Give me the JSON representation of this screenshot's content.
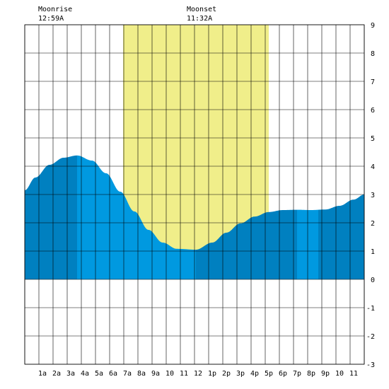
{
  "chart_data": {
    "type": "area",
    "title": "",
    "xlabel": "",
    "ylabel": "",
    "xlim": [
      -0.25,
      23.75
    ],
    "ylim": [
      -3,
      9
    ],
    "grid": true,
    "x_ticks": [
      {
        "x": 1,
        "label": "1a"
      },
      {
        "x": 2,
        "label": "2a"
      },
      {
        "x": 3,
        "label": "3a"
      },
      {
        "x": 4,
        "label": "4a"
      },
      {
        "x": 5,
        "label": "5a"
      },
      {
        "x": 6,
        "label": "6a"
      },
      {
        "x": 7,
        "label": "7a"
      },
      {
        "x": 8,
        "label": "8a"
      },
      {
        "x": 9,
        "label": "9a"
      },
      {
        "x": 10,
        "label": "10"
      },
      {
        "x": 11,
        "label": "11"
      },
      {
        "x": 12,
        "label": "12"
      },
      {
        "x": 13,
        "label": "1p"
      },
      {
        "x": 14,
        "label": "2p"
      },
      {
        "x": 15,
        "label": "3p"
      },
      {
        "x": 16,
        "label": "4p"
      },
      {
        "x": 17,
        "label": "5p"
      },
      {
        "x": 18,
        "label": "6p"
      },
      {
        "x": 19,
        "label": "7p"
      },
      {
        "x": 20,
        "label": "8p"
      },
      {
        "x": 21,
        "label": "9p"
      },
      {
        "x": 22,
        "label": "10"
      },
      {
        "x": 23,
        "label": "11"
      }
    ],
    "y_ticks": [
      -3,
      -2,
      -1,
      0,
      1,
      2,
      3,
      4,
      5,
      6,
      7,
      8,
      9
    ],
    "daylight": {
      "start": 6.7,
      "end": 17
    },
    "tide_curve": {
      "low_tide_times": [
        11.85
      ],
      "series": [
        {
          "x": -0.25,
          "y": 3.15
        },
        {
          "x": 0.5,
          "y": 3.6
        },
        {
          "x": 1.5,
          "y": 4.05
        },
        {
          "x": 2.5,
          "y": 4.3
        },
        {
          "x": 3.45,
          "y": 4.38
        },
        {
          "x": 4.5,
          "y": 4.2
        },
        {
          "x": 5.5,
          "y": 3.75
        },
        {
          "x": 6.5,
          "y": 3.1
        },
        {
          "x": 7.5,
          "y": 2.4
        },
        {
          "x": 8.5,
          "y": 1.75
        },
        {
          "x": 9.5,
          "y": 1.3
        },
        {
          "x": 10.5,
          "y": 1.08
        },
        {
          "x": 11.85,
          "y": 1.05
        },
        {
          "x": 13,
          "y": 1.3
        },
        {
          "x": 14,
          "y": 1.65
        },
        {
          "x": 15,
          "y": 1.98
        },
        {
          "x": 16,
          "y": 2.22
        },
        {
          "x": 17,
          "y": 2.38
        },
        {
          "x": 18,
          "y": 2.45
        },
        {
          "x": 19,
          "y": 2.46
        },
        {
          "x": 20,
          "y": 2.45
        },
        {
          "x": 21,
          "y": 2.47
        },
        {
          "x": 22,
          "y": 2.6
        },
        {
          "x": 23,
          "y": 2.82
        },
        {
          "x": 23.75,
          "y": 3.0
        }
      ],
      "bands": [
        {
          "from": -0.25,
          "to": 3.45,
          "shade": "dark"
        },
        {
          "from": 3.45,
          "to": 11.85,
          "shade": "light"
        },
        {
          "from": 11.85,
          "to": 19,
          "shade": "dark"
        },
        {
          "from": 19,
          "to": 20.5,
          "shade": "light"
        },
        {
          "from": 20.5,
          "to": 23.75,
          "shade": "dark"
        }
      ]
    },
    "annotations": [
      {
        "label": "Moonrise",
        "time": "12:59A"
      },
      {
        "label": "Moonset",
        "time": "11:32A"
      }
    ],
    "colors": {
      "daylight": "#f0ee8a",
      "tide_dark": "#0080c0",
      "tide_light": "#0099e0",
      "grid": "#000000",
      "background": "#ffffff"
    }
  }
}
